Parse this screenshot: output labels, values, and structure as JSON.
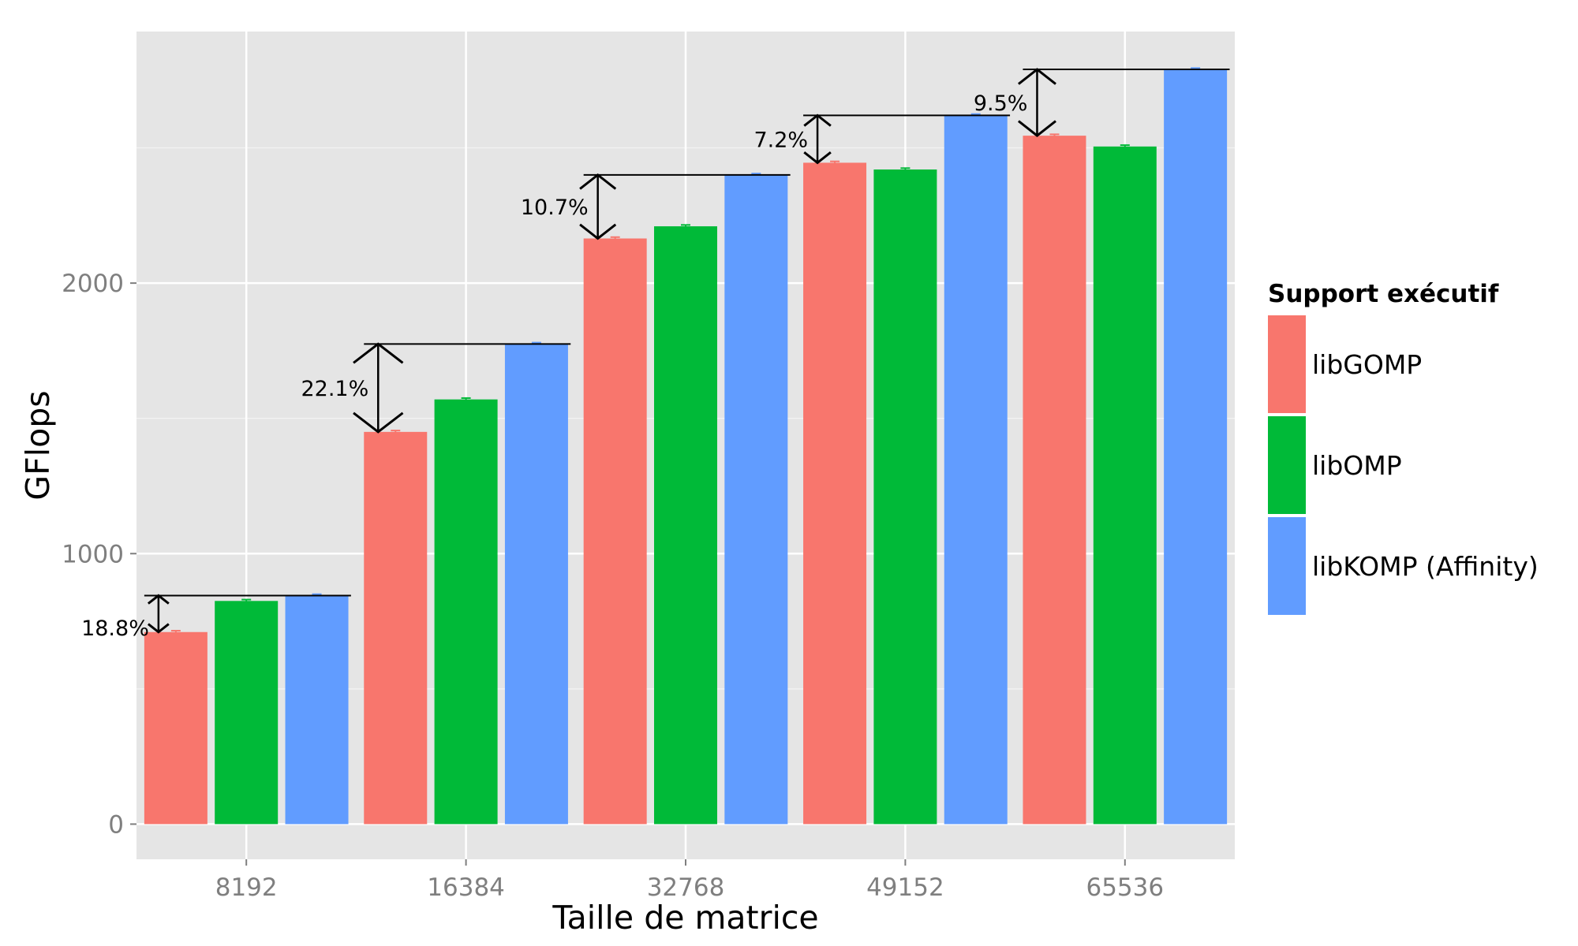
{
  "chart_data": {
    "type": "bar",
    "categories": [
      "8192",
      "16384",
      "32768",
      "49152",
      "65536"
    ],
    "series": [
      {
        "name": "libGOMP",
        "color": "#F8766D",
        "values": [
          710,
          1450,
          2165,
          2445,
          2545
        ]
      },
      {
        "name": "libOMP",
        "color": "#00BA38",
        "values": [
          825,
          1570,
          2210,
          2420,
          2505
        ]
      },
      {
        "name": "libKOMP (Affinity)",
        "color": "#619CFF",
        "values": [
          845,
          1775,
          2400,
          2620,
          2790
        ]
      }
    ],
    "annotations": [
      "18.8%",
      "22.1%",
      "10.7%",
      "7.2%",
      "9.5%"
    ],
    "xlabel": "Taille de matrice",
    "ylabel": "GFlops",
    "yticks": [
      "0",
      "1000",
      "2000"
    ],
    "ylim": [
      -130,
      2930
    ],
    "legend": {
      "title": "Support exécutif",
      "position": "right"
    },
    "grid": true,
    "error_bars": true
  }
}
